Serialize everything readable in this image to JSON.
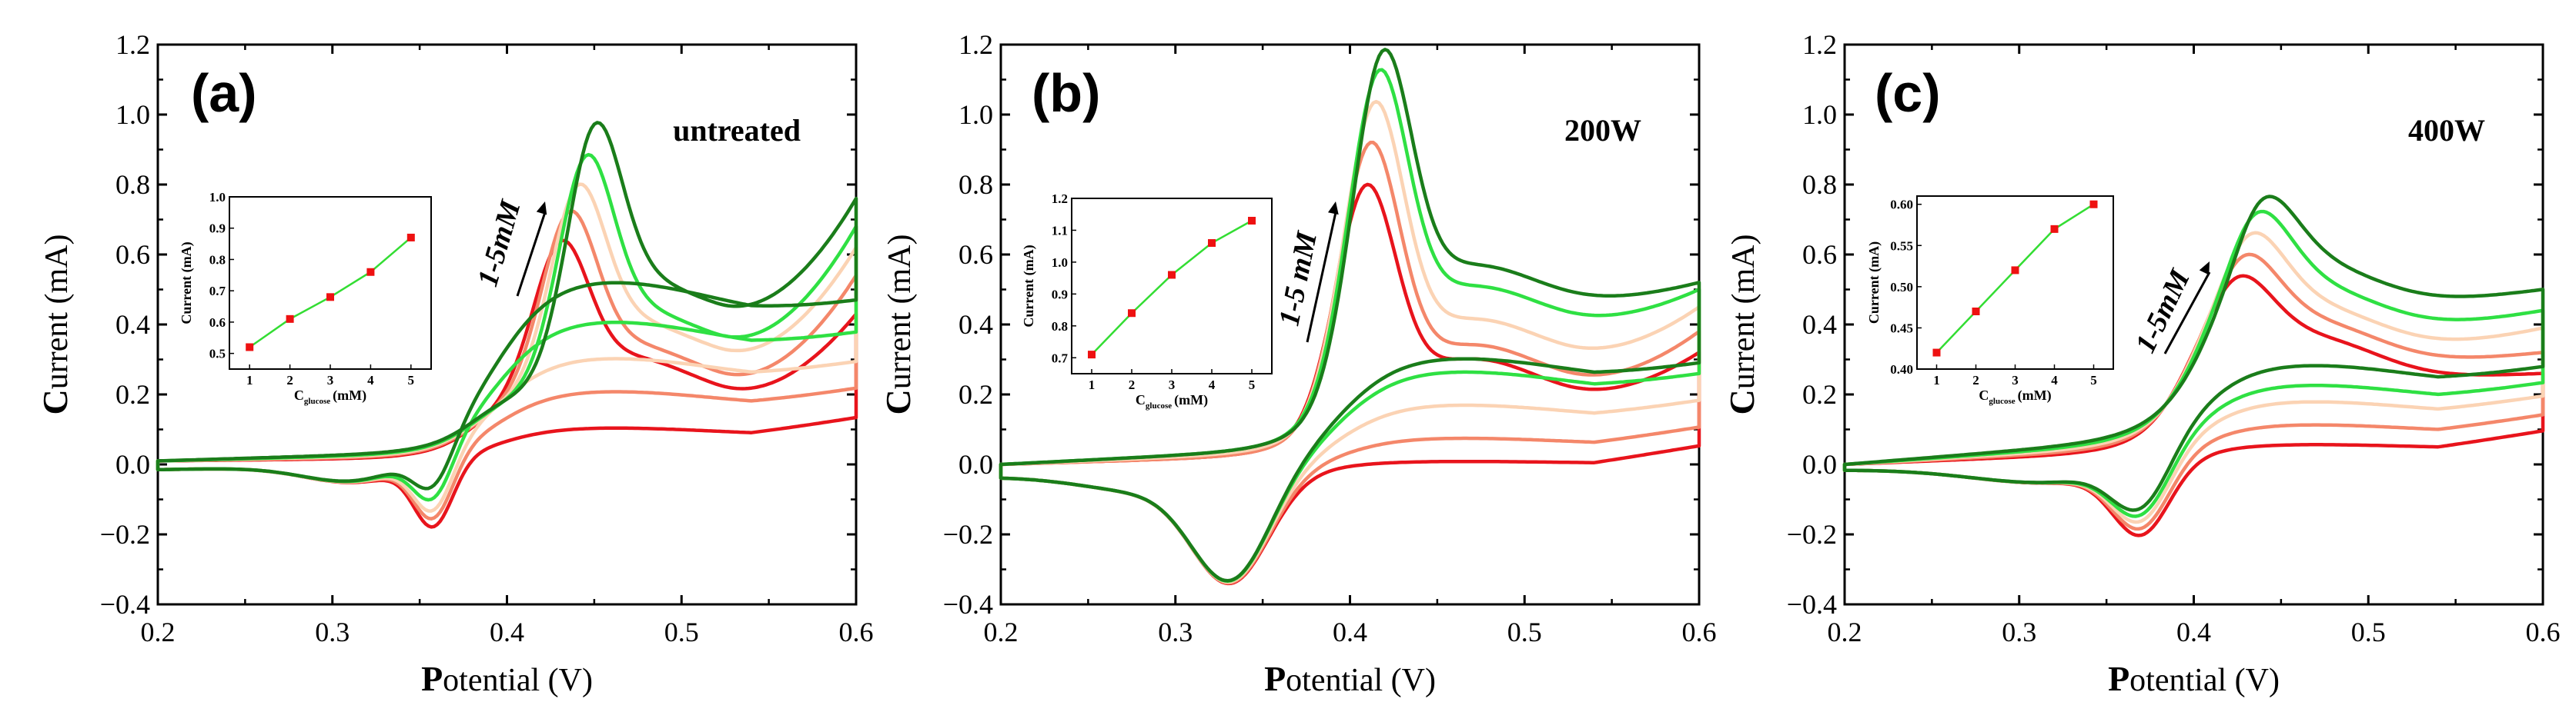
{
  "figure": {
    "panels_description": "Three cyclic voltammetry panels with glucose calibration insets"
  },
  "chart_data": [
    {
      "type": "line",
      "panel_label": "(a)",
      "condition_label": "untreated",
      "range_label": "1-5mM",
      "xlabel_first": "P",
      "xlabel_rest": "otential (V)",
      "ylabel_first": "C",
      "ylabel_rest": "urrent (mA)",
      "xlim": [
        0.2,
        0.6
      ],
      "ylim": [
        -0.4,
        1.2
      ],
      "xticks": [
        "0.2",
        "0.3",
        "0.4",
        "0.5",
        "0.6"
      ],
      "yticks": [
        "−0.4",
        "−0.2",
        "0.0",
        "0.2",
        "0.4",
        "0.6",
        "0.8",
        "1.0",
        "1.2"
      ],
      "colors": [
        "#e8141c",
        "#f4876a",
        "#fbd3b4",
        "#2fe043",
        "#1a7d1a"
      ],
      "params": {
        "Epa": 0.43,
        "Epa_shift": 0.0045,
        "peak_w": 0.016,
        "Epc": 0.358,
        "cath_w": 0.011,
        "cath_amp": [
          0.18,
          0.17,
          0.16,
          0.14,
          0.12
        ],
        "cath_diff": 0.03,
        "hump_E": 0.485,
        "hump_w": 0.045,
        "fwd_base": [
          0.11,
          0.22,
          0.32,
          0.43,
          0.55
        ],
        "rev_peak": [
          0.53,
          0.61,
          0.69,
          0.77,
          0.87
        ],
        "tail_low": [
          0.14,
          0.17,
          0.23,
          0.26,
          0.34
        ],
        "tail_up": [
          0.38,
          0.48,
          0.55,
          0.6,
          0.67
        ],
        "rev_rest": [
          0.01,
          0.015,
          0.02,
          0.025,
          0.03
        ],
        "onset": 0.382,
        "onset_w": 0.012,
        "start_fwd": 0.0,
        "start_rev": 0.01
      },
      "inset": {
        "xlabel": "C",
        "xlabel_sub": "glucose",
        "xlabel_unit": "(mM)",
        "ylabel": "Current (mA)",
        "x": [
          1,
          2,
          3,
          4,
          5
        ],
        "y": [
          0.52,
          0.61,
          0.68,
          0.76,
          0.87
        ],
        "ylim": [
          0.45,
          1.0
        ],
        "yticks": [
          "0.5",
          "0.6",
          "0.7",
          "0.8",
          "0.9",
          "1.0"
        ],
        "xticks": [
          "1",
          "2",
          "3",
          "4",
          "5"
        ]
      }
    },
    {
      "type": "line",
      "panel_label": "(b)",
      "condition_label": "200W",
      "range_label": "1-5 mM",
      "xlabel_first": "P",
      "xlabel_rest": "otential (V)",
      "ylabel_first": "C",
      "ylabel_rest": "urrent (mA)",
      "xlim": [
        0.2,
        0.6
      ],
      "ylim": [
        -0.4,
        1.2
      ],
      "xticks": [
        "0.2",
        "0.3",
        "0.4",
        "0.5",
        "0.6"
      ],
      "yticks": [
        "−0.4",
        "−0.2",
        "0.0",
        "0.2",
        "0.4",
        "0.6",
        "0.8",
        "1.0",
        "1.2"
      ],
      "colors": [
        "#e8141c",
        "#f4876a",
        "#fbd3b4",
        "#2fe043",
        "#1a7d1a"
      ],
      "params": {
        "Epa": 0.409,
        "Epa_shift": 0.002,
        "peak_w": 0.017,
        "Epc": 0.332,
        "cath_w": 0.022,
        "cath_amp": [
          0.3,
          0.3,
          0.3,
          0.3,
          0.3
        ],
        "cath_diff": 0.04,
        "hump_E": 0.49,
        "hump_w": 0.05,
        "fwd_base": [
          0.03,
          0.1,
          0.2,
          0.3,
          0.34
        ],
        "rev_peak": [
          0.71,
          0.84,
          0.96,
          1.06,
          1.13
        ],
        "tail_low": [
          0.12,
          0.16,
          0.22,
          0.3,
          0.36
        ],
        "tail_up": [
          0.24,
          0.3,
          0.35,
          0.38,
          0.4
        ],
        "rev_rest": [
          0.03,
          0.03,
          0.04,
          0.05,
          0.05
        ],
        "onset": 0.385,
        "onset_w": 0.014,
        "start_fwd": -0.02,
        "start_rev": 0.0
      },
      "inset": {
        "xlabel": "C",
        "xlabel_sub": "glucose",
        "xlabel_unit": "(mM)",
        "ylabel": "Current (mA)",
        "x": [
          1,
          2,
          3,
          4,
          5
        ],
        "y": [
          0.71,
          0.84,
          0.96,
          1.06,
          1.13
        ],
        "ylim": [
          0.65,
          1.2
        ],
        "yticks": [
          "0.7",
          "0.8",
          "0.9",
          "1.0",
          "1.1",
          "1.2"
        ],
        "xticks": [
          "1",
          "2",
          "3",
          "4",
          "5"
        ]
      }
    },
    {
      "type": "line",
      "panel_label": "(c)",
      "condition_label": "400W",
      "range_label": "1-5mM",
      "xlabel_first": "P",
      "xlabel_rest": "otential (V)",
      "ylabel_first": "C",
      "ylabel_rest": "urrent (mA)",
      "xlim": [
        0.2,
        0.6
      ],
      "ylim": [
        -0.4,
        1.2
      ],
      "xticks": [
        "0.2",
        "0.3",
        "0.4",
        "0.5",
        "0.6"
      ],
      "yticks": [
        "−0.4",
        "−0.2",
        "0.0",
        "0.2",
        "0.4",
        "0.6",
        "0.8",
        "1.0",
        "1.2"
      ],
      "colors": [
        "#e8141c",
        "#f4876a",
        "#fbd3b4",
        "#2fe043",
        "#1a7d1a"
      ],
      "params": {
        "Epa": 0.422,
        "Epa_shift": 0.003,
        "peak_w": 0.022,
        "Epc": 0.37,
        "cath_w": 0.016,
        "cath_amp": [
          0.19,
          0.18,
          0.17,
          0.16,
          0.15
        ],
        "cath_diff": 0.05,
        "hump_E": 0.49,
        "hump_w": 0.05,
        "fwd_base": [
          0.06,
          0.12,
          0.19,
          0.24,
          0.3
        ],
        "rev_peak": [
          0.42,
          0.47,
          0.52,
          0.57,
          0.6
        ],
        "tail_low": [
          0.16,
          0.19,
          0.22,
          0.26,
          0.31
        ],
        "tail_up": [
          0.16,
          0.2,
          0.25,
          0.28,
          0.32
        ],
        "rev_rest": [
          0.04,
          0.05,
          0.06,
          0.07,
          0.08
        ],
        "onset": 0.39,
        "onset_w": 0.015,
        "start_fwd": 0.0,
        "start_rev": 0.0
      },
      "inset": {
        "xlabel": "C",
        "xlabel_sub": "glucose",
        "xlabel_unit": "(mM)",
        "ylabel": "Current (mA)",
        "x": [
          1,
          2,
          3,
          4,
          5
        ],
        "y": [
          0.42,
          0.47,
          0.52,
          0.57,
          0.6
        ],
        "ylim": [
          0.4,
          0.61
        ],
        "yticks": [
          "0.40",
          "0.45",
          "0.50",
          "0.55",
          "0.60"
        ],
        "xticks": [
          "1",
          "2",
          "3",
          "4",
          "5"
        ]
      }
    }
  ]
}
